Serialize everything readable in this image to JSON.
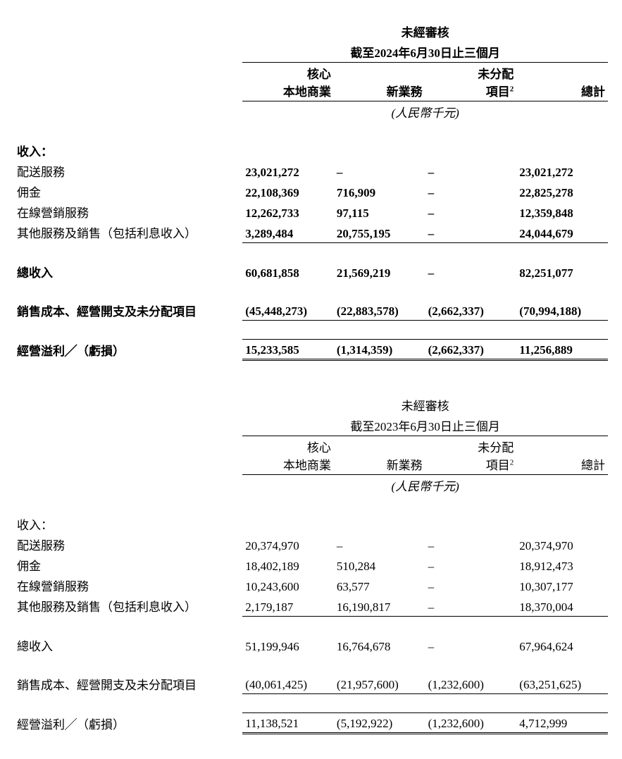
{
  "common": {
    "unit_label": "(人民幣千元)",
    "col_core": "核心\n本地商業",
    "col_core_l1": "核心",
    "col_core_l2": "本地商業",
    "col_newbiz": "新業務",
    "col_unalloc_l1": "未分配",
    "col_unalloc_l2": "項目",
    "col_unalloc_sup": "2",
    "col_total": "總計",
    "sec_revenue": "收入：",
    "row_delivery": "配送服務",
    "row_commission": "佣金",
    "row_marketing": "在線營銷服務",
    "row_other": "其他服務及銷售（包括利息收入）",
    "row_total_rev": "總收入",
    "row_cogs": "銷售成本、經營開支及未分配項目",
    "row_op": "經營溢利╱（虧損）"
  },
  "t1": {
    "audit": "未經審核",
    "period": "截至2024年6月30日止三個月",
    "delivery": {
      "core": "23,021,272",
      "nb": "–",
      "un": "–",
      "tot": "23,021,272"
    },
    "commission": {
      "core": "22,108,369",
      "nb": "716,909",
      "un": "–",
      "tot": "22,825,278"
    },
    "marketing": {
      "core": "12,262,733",
      "nb": "97,115",
      "un": "–",
      "tot": "12,359,848"
    },
    "other": {
      "core": "3,289,484",
      "nb": "20,755,195",
      "un": "–",
      "tot": "24,044,679"
    },
    "totalrev": {
      "core": "60,681,858",
      "nb": "21,569,219",
      "un": "–",
      "tot": "82,251,077"
    },
    "cogs": {
      "core": "(45,448,273)",
      "nb": "(22,883,578)",
      "un": "(2,662,337)",
      "tot": "(70,994,188)"
    },
    "op": {
      "core": "15,233,585",
      "nb": "(1,314,359)",
      "un": "(2,662,337)",
      "tot": "11,256,889"
    }
  },
  "t2": {
    "audit": "未經審核",
    "period": "截至2023年6月30日止三個月",
    "delivery": {
      "core": "20,374,970",
      "nb": "–",
      "un": "–",
      "tot": "20,374,970"
    },
    "commission": {
      "core": "18,402,189",
      "nb": "510,284",
      "un": "–",
      "tot": "18,912,473"
    },
    "marketing": {
      "core": "10,243,600",
      "nb": "63,577",
      "un": "–",
      "tot": "10,307,177"
    },
    "other": {
      "core": "2,179,187",
      "nb": "16,190,817",
      "un": "–",
      "tot": "18,370,004"
    },
    "totalrev": {
      "core": "51,199,946",
      "nb": "16,764,678",
      "un": "–",
      "tot": "67,964,624"
    },
    "cogs": {
      "core": "(40,061,425)",
      "nb": "(21,957,600)",
      "un": "(1,232,600)",
      "tot": "(63,251,625)"
    },
    "op": {
      "core": "11,138,521",
      "nb": "(5,192,922)",
      "un": "(1,232,600)",
      "tot": "4,712,999"
    }
  }
}
